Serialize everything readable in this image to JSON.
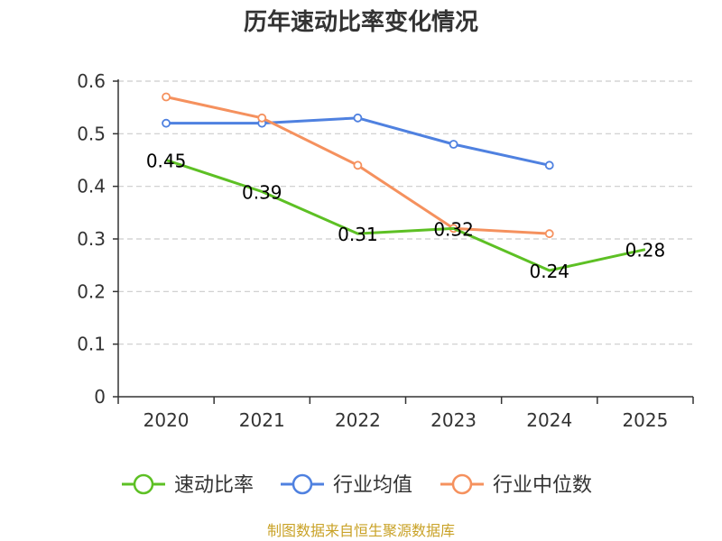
{
  "chart_data": {
    "type": "line",
    "title": "历年速动比率变化情况",
    "categories": [
      "2020",
      "2021",
      "2022",
      "2023",
      "2024",
      "2025"
    ],
    "ylim": [
      0,
      0.6
    ],
    "yticks": [
      "0",
      "0.1",
      "0.2",
      "0.3",
      "0.4",
      "0.5",
      "0.6"
    ],
    "grid": true,
    "series": [
      {
        "name": "速动比率",
        "color": "#5dc024",
        "values": [
          0.45,
          0.39,
          0.31,
          0.32,
          0.24,
          0.28
        ],
        "labels": [
          "0.45",
          "0.39",
          "0.31",
          "0.32",
          "0.24",
          "0.28"
        ],
        "show_labels": true
      },
      {
        "name": "行业均值",
        "color": "#4f81e0",
        "values": [
          0.52,
          0.52,
          0.53,
          0.48,
          0.44,
          null
        ],
        "show_labels": false
      },
      {
        "name": "行业中位数",
        "color": "#f5915e",
        "values": [
          0.57,
          0.53,
          0.44,
          0.32,
          0.31,
          null
        ],
        "show_labels": false
      }
    ],
    "legend_position": "bottom",
    "source": "制图数据来自恒生聚源数据库"
  }
}
